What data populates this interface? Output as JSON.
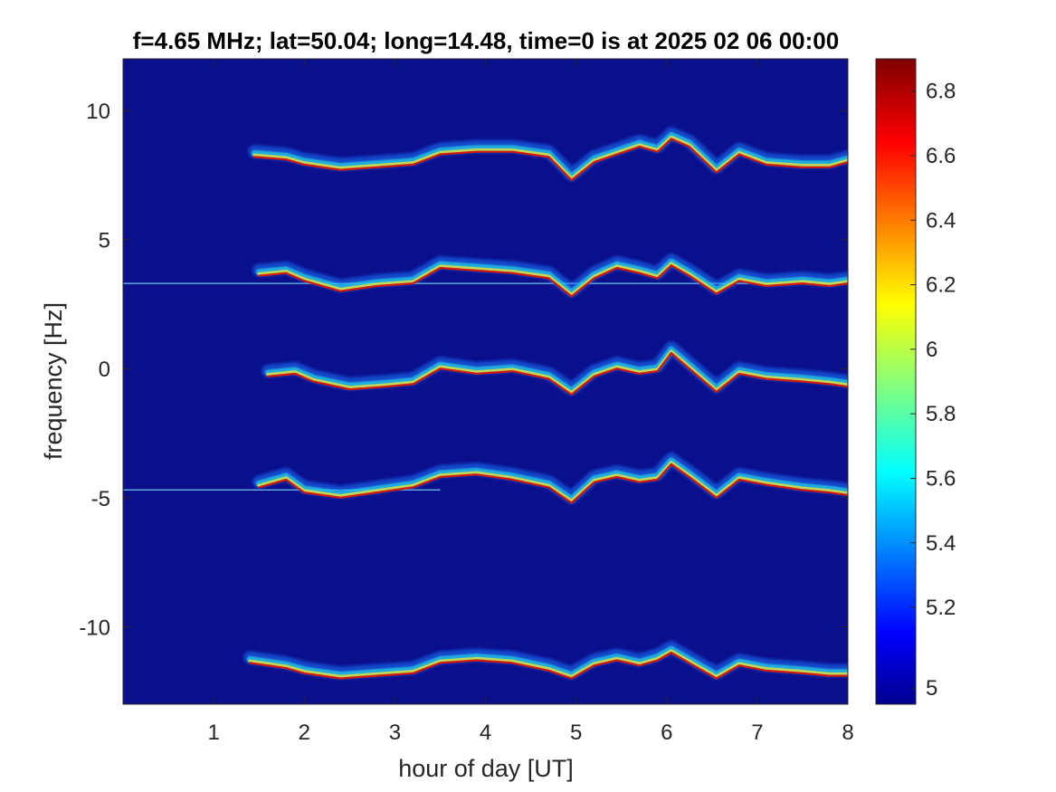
{
  "chart_data": {
    "type": "heatmap",
    "title": "f=4.65 MHz;  lat=50.04; long=14.48, time=0 is at 2025 02 06 00:00",
    "xlabel": "hour of day [UT]",
    "ylabel": "frequency [Hz]",
    "xlim": [
      0,
      8
    ],
    "ylim": [
      -13,
      12
    ],
    "x_ticks": [
      1,
      2,
      3,
      4,
      5,
      6,
      7,
      8
    ],
    "x_tick_labels": [
      "1",
      "2",
      "3",
      "4",
      "5",
      "6",
      "7",
      "8"
    ],
    "y_ticks": [
      10,
      5,
      0,
      -5,
      -10
    ],
    "y_tick_labels": [
      "10",
      "5",
      "0",
      "-5",
      "-10"
    ],
    "colorbar": {
      "colormap": "jet",
      "clim": [
        4.9,
        6.9
      ],
      "ticks": [
        4.95,
        5.2,
        5.4,
        5.6,
        5.8,
        6.0,
        6.2,
        6.4,
        6.6,
        6.8
      ],
      "tick_labels": [
        "5",
        "5.2",
        "5.4",
        "5.6",
        "5.8",
        "6",
        "6.2",
        "6.4",
        "6.6",
        "6.8"
      ]
    },
    "background_color": "#0a0f8c",
    "traces": [
      {
        "x": [
          1.45,
          1.8,
          2.0,
          2.4,
          2.8,
          3.2,
          3.5,
          3.9,
          4.3,
          4.7,
          4.95,
          5.2,
          5.45,
          5.7,
          5.9,
          6.05,
          6.25,
          6.55,
          6.8,
          7.1,
          7.5,
          7.8,
          8.0
        ],
        "y": [
          8.2,
          8.1,
          7.9,
          7.7,
          7.8,
          7.9,
          8.3,
          8.4,
          8.4,
          8.2,
          7.3,
          8.0,
          8.3,
          8.6,
          8.4,
          8.9,
          8.6,
          7.6,
          8.3,
          7.9,
          7.8,
          7.8,
          8.0
        ]
      },
      {
        "x": [
          1.5,
          1.8,
          2.0,
          2.4,
          2.8,
          3.2,
          3.5,
          3.9,
          4.3,
          4.7,
          4.95,
          5.2,
          5.45,
          5.7,
          5.9,
          6.05,
          6.25,
          6.55,
          6.8,
          7.1,
          7.5,
          7.8,
          8.0
        ],
        "y": [
          3.6,
          3.7,
          3.4,
          3.0,
          3.2,
          3.3,
          3.9,
          3.8,
          3.7,
          3.5,
          2.8,
          3.5,
          3.9,
          3.7,
          3.5,
          4.0,
          3.6,
          2.9,
          3.4,
          3.2,
          3.3,
          3.2,
          3.3
        ]
      },
      {
        "x": [
          1.6,
          1.9,
          2.1,
          2.5,
          2.9,
          3.2,
          3.5,
          3.9,
          4.3,
          4.7,
          4.95,
          5.2,
          5.45,
          5.7,
          5.9,
          6.05,
          6.25,
          6.55,
          6.8,
          7.1,
          7.5,
          7.8,
          8.0
        ],
        "y": [
          -0.3,
          -0.2,
          -0.5,
          -0.8,
          -0.7,
          -0.6,
          0.0,
          -0.2,
          -0.1,
          -0.4,
          -1.0,
          -0.3,
          0.0,
          -0.2,
          -0.1,
          0.6,
          0.0,
          -0.9,
          -0.2,
          -0.4,
          -0.5,
          -0.6,
          -0.7
        ]
      },
      {
        "x": [
          1.5,
          1.8,
          2.0,
          2.4,
          2.8,
          3.2,
          3.5,
          3.9,
          4.3,
          4.7,
          4.95,
          5.2,
          5.45,
          5.7,
          5.9,
          6.05,
          6.25,
          6.55,
          6.8,
          7.1,
          7.5,
          7.8,
          8.0
        ],
        "y": [
          -4.6,
          -4.3,
          -4.8,
          -5.0,
          -4.8,
          -4.6,
          -4.2,
          -4.1,
          -4.3,
          -4.6,
          -5.2,
          -4.4,
          -4.2,
          -4.4,
          -4.3,
          -3.7,
          -4.2,
          -5.0,
          -4.3,
          -4.5,
          -4.7,
          -4.8,
          -4.9
        ]
      },
      {
        "x": [
          1.4,
          1.8,
          2.0,
          2.4,
          2.8,
          3.2,
          3.5,
          3.9,
          4.3,
          4.7,
          4.95,
          5.2,
          5.45,
          5.7,
          5.9,
          6.05,
          6.25,
          6.55,
          6.8,
          7.1,
          7.5,
          7.8,
          8.0
        ],
        "y": [
          -11.4,
          -11.6,
          -11.8,
          -12.0,
          -11.9,
          -11.8,
          -11.4,
          -11.3,
          -11.4,
          -11.7,
          -12.0,
          -11.5,
          -11.3,
          -11.5,
          -11.3,
          -11.0,
          -11.4,
          -12.0,
          -11.5,
          -11.7,
          -11.8,
          -11.9,
          -11.9
        ]
      }
    ],
    "horizontal_lines": [
      {
        "y": 3.3,
        "x_range": [
          0,
          8
        ]
      },
      {
        "y": -4.7,
        "x_range": [
          0,
          3.5
        ]
      }
    ]
  }
}
